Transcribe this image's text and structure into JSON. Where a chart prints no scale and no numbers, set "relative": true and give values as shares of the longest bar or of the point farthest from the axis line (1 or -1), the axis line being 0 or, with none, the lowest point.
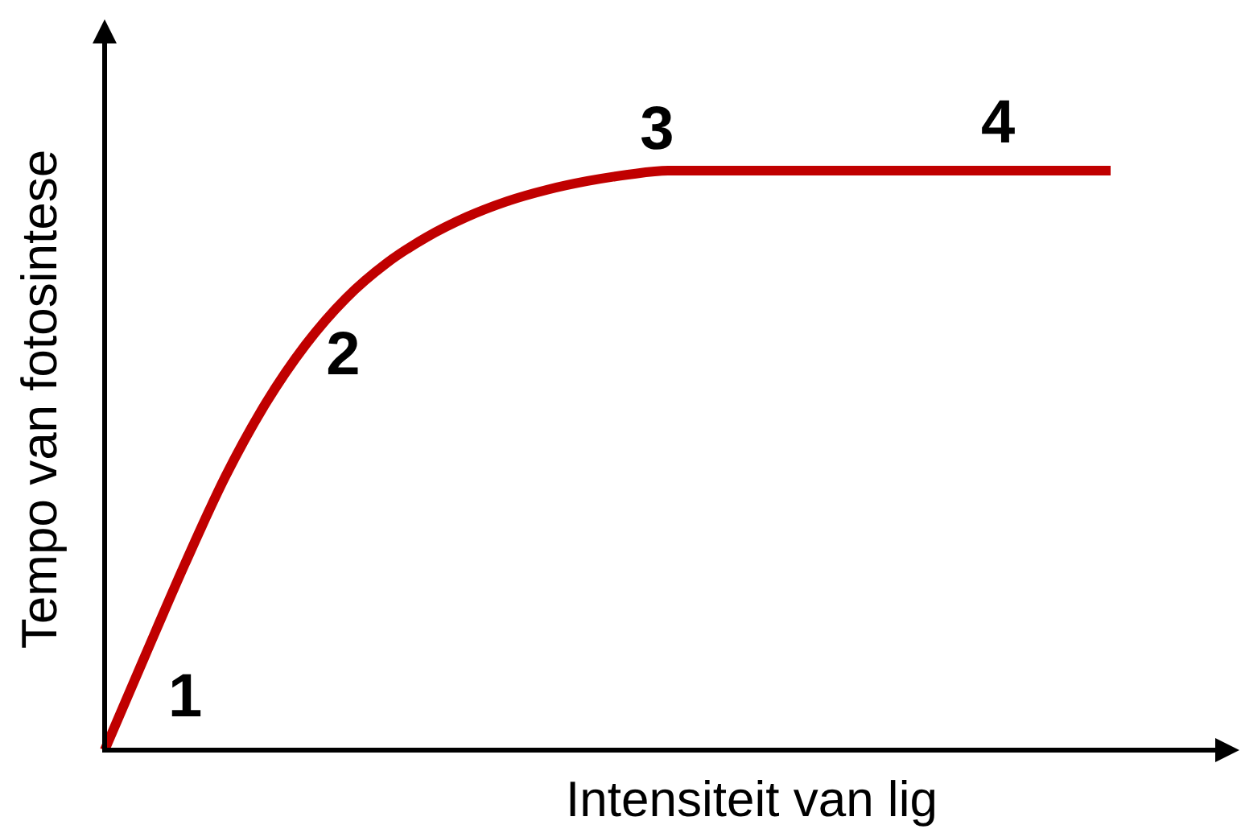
{
  "chart_data": {
    "type": "line",
    "xlabel": "Intensiteit van lig",
    "ylabel": "Tempo van fotosintese",
    "relative": true,
    "marker": "none",
    "line_style": "solid",
    "annotations": [
      "1",
      "2",
      "3",
      "4"
    ],
    "categories": [
      null,
      null,
      null,
      null,
      null,
      null,
      null,
      null,
      null,
      null,
      null,
      null,
      null,
      null,
      null,
      null,
      null,
      null,
      null,
      null,
      null,
      null,
      null,
      null,
      null,
      null
    ],
    "series": [
      {
        "color": "#c00000",
        "values": [
          0,
          0.162,
          0.322,
          0.472,
          0.598,
          0.7,
          0.78,
          0.84,
          0.885,
          0.92,
          0.947,
          0.967,
          0.982,
          0.993,
          1,
          1,
          1,
          1,
          1,
          1,
          1,
          1,
          1,
          1,
          1,
          1
        ]
      }
    ]
  }
}
